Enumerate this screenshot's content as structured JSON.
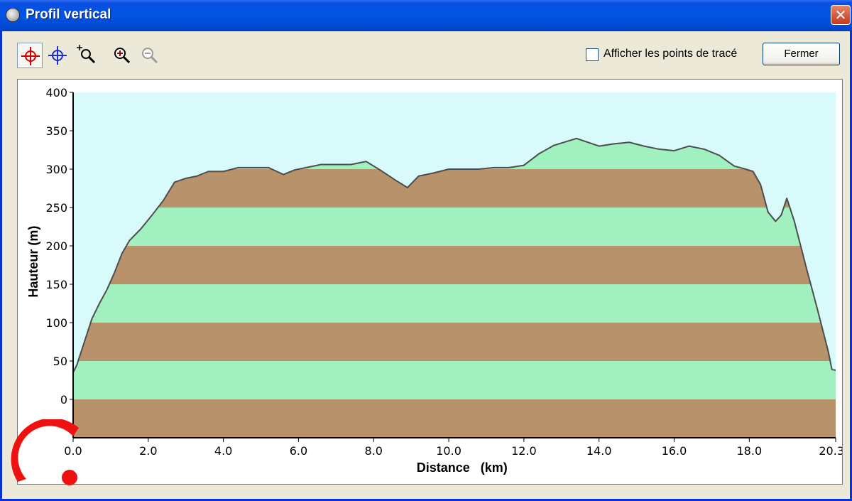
{
  "window": {
    "title": "Profil vertical",
    "close_label": "✕"
  },
  "toolbar": {
    "tools": [
      {
        "name": "crosshair-red-icon",
        "color": "#d40000",
        "active": true
      },
      {
        "name": "crosshair-blue-icon",
        "color": "#1b2fd0",
        "active": false
      },
      {
        "name": "zoom-select-icon",
        "color": "#000000",
        "active": false
      },
      {
        "name": "zoom-in-icon",
        "color": "#000000",
        "active": false
      },
      {
        "name": "zoom-out-icon",
        "color": "#9a9a9a",
        "active": false,
        "disabled": true
      }
    ],
    "checkbox_label": "Afficher les points de tracé",
    "checkbox_checked": false,
    "close_button_label": "Fermer"
  },
  "chart_data": {
    "type": "area",
    "xlabel": "Distance   (km)",
    "ylabel": "Hauteur (m)",
    "xlim": [
      0,
      20.3
    ],
    "ylim": [
      -50,
      400
    ],
    "x_ticks": [
      {
        "value": 0,
        "label": "0.0"
      },
      {
        "value": 2,
        "label": "2.0"
      },
      {
        "value": 4,
        "label": "4.0"
      },
      {
        "value": 6,
        "label": "6.0"
      },
      {
        "value": 8,
        "label": "8.0"
      },
      {
        "value": 10,
        "label": "10.0"
      },
      {
        "value": 12,
        "label": "12.0"
      },
      {
        "value": 14,
        "label": "14.0"
      },
      {
        "value": 16,
        "label": "16.0"
      },
      {
        "value": 18,
        "label": "18.0"
      },
      {
        "value": 20.3,
        "label": "20.3"
      }
    ],
    "y_ticks": [
      {
        "value": 400,
        "label": "400"
      },
      {
        "value": 350,
        "label": "350"
      },
      {
        "value": 300,
        "label": "300"
      },
      {
        "value": 250,
        "label": "250"
      },
      {
        "value": 200,
        "label": "200"
      },
      {
        "value": 150,
        "label": "150"
      },
      {
        "value": 100,
        "label": "100"
      },
      {
        "value": 50,
        "label": "50"
      },
      {
        "value": 0,
        "label": "0"
      }
    ],
    "band_colors": [
      "#b8926a",
      "#a0f0c0"
    ],
    "background_color": "#d8fafa",
    "line_color": "#4d4d4d",
    "profile": {
      "x": [
        0,
        0.1,
        0.3,
        0.5,
        0.7,
        0.9,
        1.1,
        1.3,
        1.5,
        1.8,
        2.1,
        2.4,
        2.7,
        3.0,
        3.3,
        3.6,
        4.0,
        4.4,
        4.8,
        5.2,
        5.6,
        5.9,
        6.2,
        6.6,
        7.0,
        7.4,
        7.8,
        8.2,
        8.6,
        8.9,
        9.2,
        9.6,
        10.0,
        10.4,
        10.8,
        11.2,
        11.6,
        12.0,
        12.4,
        12.8,
        13.2,
        13.4,
        13.7,
        14.0,
        14.4,
        14.8,
        15.2,
        15.6,
        16.0,
        16.4,
        16.8,
        17.2,
        17.6,
        17.9,
        18.1,
        18.3,
        18.5,
        18.7,
        18.85,
        19.0,
        19.2,
        19.5,
        19.8,
        20.1,
        20.2,
        20.3
      ],
      "y": [
        35,
        45,
        75,
        105,
        125,
        143,
        165,
        190,
        207,
        222,
        240,
        259,
        283,
        288,
        291,
        297,
        297,
        302,
        302,
        302,
        293,
        299,
        302,
        306,
        306,
        306,
        310,
        298,
        285,
        276,
        291,
        295,
        300,
        300,
        300,
        302,
        302,
        305,
        320,
        331,
        337,
        340,
        335,
        330,
        333,
        335,
        330,
        326,
        324,
        330,
        326,
        318,
        304,
        300,
        297,
        280,
        244,
        232,
        240,
        262,
        232,
        175,
        120,
        63,
        39,
        38
      ]
    }
  }
}
